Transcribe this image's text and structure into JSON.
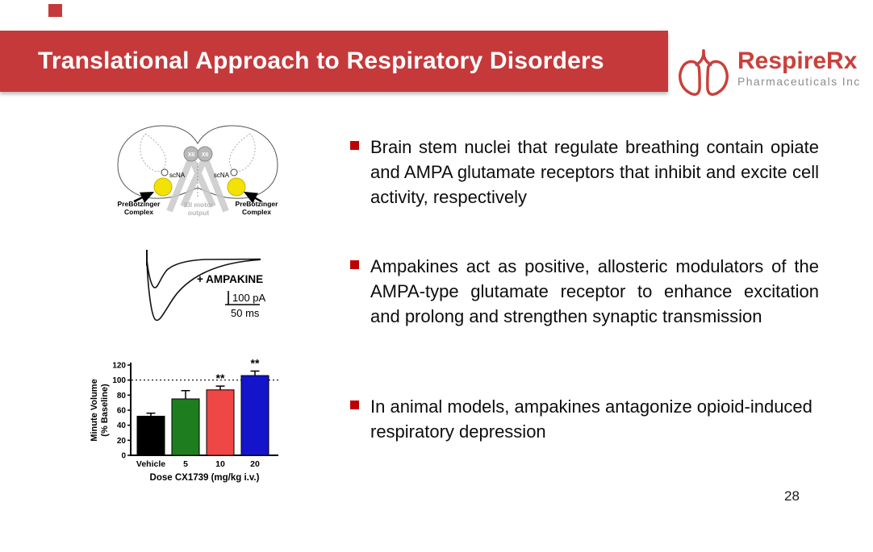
{
  "slide": {
    "title": "Translational Approach to Respiratory Disorders",
    "page_number": "28",
    "colors": {
      "banner_red": "#C5393B",
      "logo_red": "#C9413C",
      "logo_gray": "#8C8C8C",
      "bullet_marker_red": "#C00000"
    }
  },
  "logo": {
    "name": "RespireRx",
    "subtitle": "Pharmaceuticals Inc",
    "icon": "lungs-icon"
  },
  "bullets": [
    {
      "text": "Brain stem nuclei that regulate breathing contain opiate and AMPA glutamate receptors that inhibit and excite cell activity, respectively"
    },
    {
      "text": "Ampakines act as positive, allosteric modulators of the AMPA-type glutamate receptor to enhance excitation and prolong and strengthen synaptic transmission"
    },
    {
      "text": "In animal models, ampakines antagonize opioid-induced respiratory depression"
    }
  ],
  "brain_diagram": {
    "xii_left": "XII",
    "xii_right": "XII",
    "scna_left": "scNA",
    "scna_right": "scNA",
    "prebot_left_line1": "PreBötzinger",
    "prebot_left_line2": "Complex",
    "prebot_right_line1": "PreBötzinger",
    "prebot_right_line2": "Complex",
    "motor_line1": "XII motor",
    "motor_line2": "output"
  },
  "trace_figure": {
    "label": "+ AMPAKINE",
    "scale_vertical": "100 pA",
    "scale_horizontal": "50 ms"
  },
  "chart_data": {
    "type": "bar",
    "categories": [
      "Vehicle",
      "5",
      "10",
      "20"
    ],
    "values": [
      52,
      75,
      87,
      106
    ],
    "errors": [
      4,
      11,
      5,
      6
    ],
    "significance": [
      "",
      "",
      "**",
      "**"
    ],
    "bar_colors": [
      "#000000",
      "#1E7D1E",
      "#EF4646",
      "#1414CC"
    ],
    "ylabel_line1": "Minute Volume",
    "ylabel_line2": "(% Baseline)",
    "xlabel": "Dose CX1739 (mg/kg i.v.)",
    "ylim": [
      0,
      120
    ],
    "ytick_step": 20,
    "reference_line": 100,
    "grid": false,
    "legend": false
  }
}
